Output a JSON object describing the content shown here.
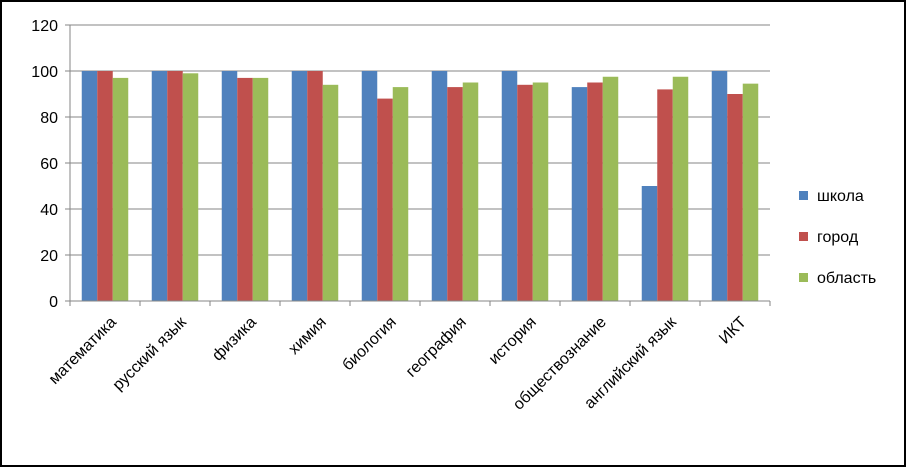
{
  "chart_data": {
    "type": "bar",
    "title": "",
    "xlabel": "",
    "ylabel": "",
    "categories": [
      "математика",
      "русский язык",
      "физика",
      "химия",
      "биология",
      "география",
      "история",
      "обществознание",
      "английский язык",
      "ИКТ"
    ],
    "series": [
      {
        "name": "школа",
        "color": "#4F81BD",
        "values": [
          100,
          100,
          100,
          100,
          100,
          100,
          100,
          93,
          50,
          100
        ]
      },
      {
        "name": "город",
        "color": "#C0504D",
        "values": [
          100,
          100,
          97,
          100,
          88,
          93,
          94,
          95,
          92,
          90
        ]
      },
      {
        "name": "область",
        "color": "#9BBB59",
        "values": [
          97,
          99,
          97,
          94,
          93,
          95,
          95,
          97.5,
          97.5,
          94.5
        ]
      }
    ],
    "ylim": [
      0,
      120
    ],
    "yticks": [
      0,
      20,
      40,
      60,
      80,
      100,
      120
    ],
    "grid": true,
    "legend": "right"
  }
}
